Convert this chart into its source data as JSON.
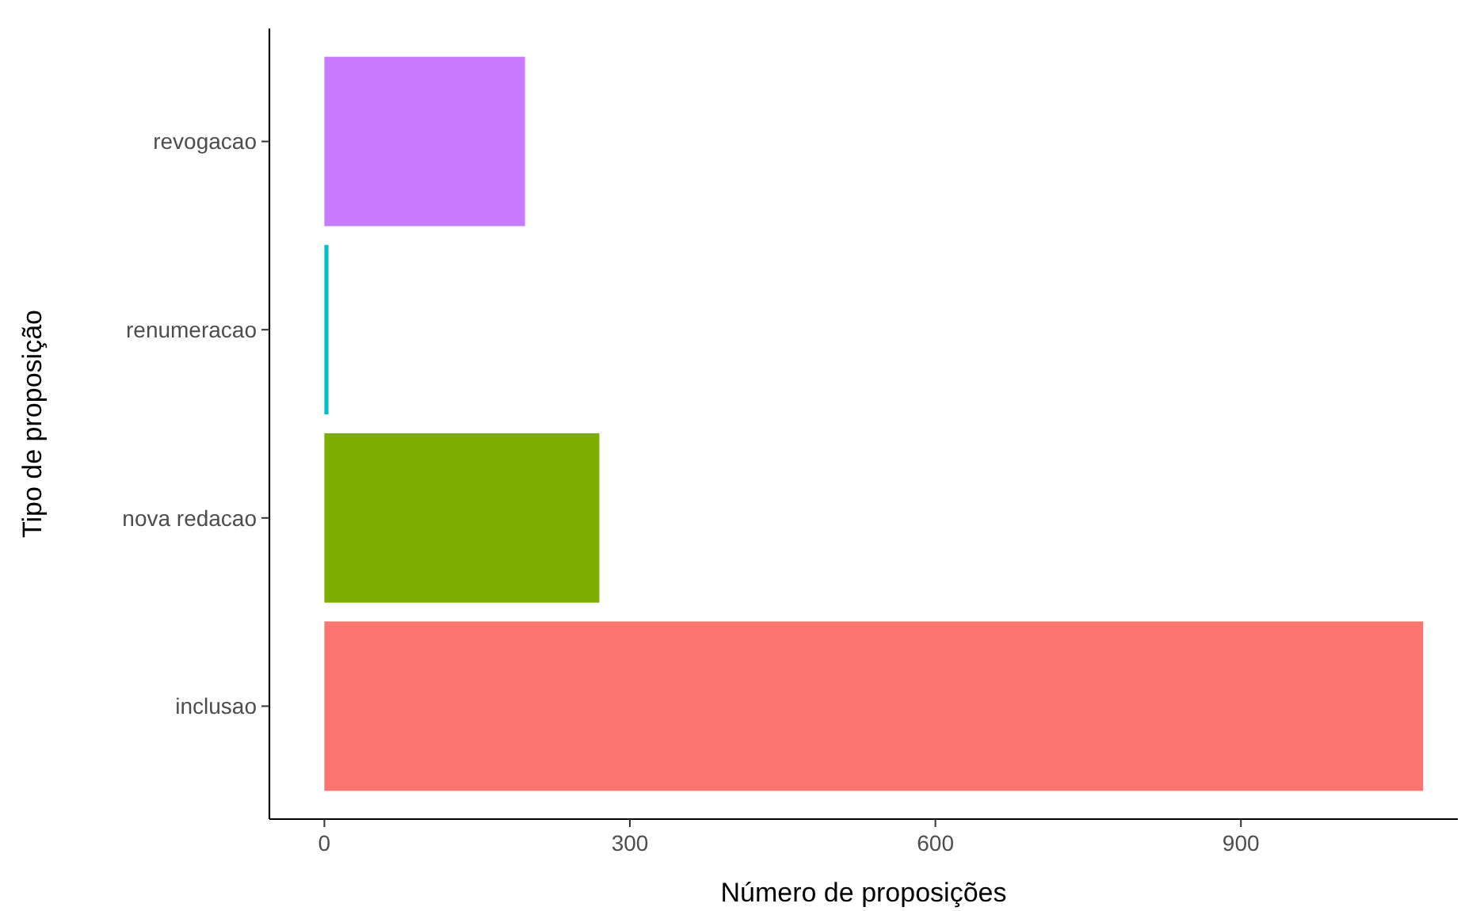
{
  "chart_data": {
    "type": "bar",
    "orientation": "horizontal",
    "xlabel": "Número de proposições",
    "ylabel": "Tipo de proposição",
    "categories": [
      "revogacao",
      "renumeracao",
      "nova redacao",
      "inclusao"
    ],
    "values": [
      197,
      4,
      270,
      1079
    ],
    "colors": [
      "#c77cff",
      "#00bfc4",
      "#7cae00",
      "#f8766d"
    ],
    "xlim": [
      -54,
      1113
    ],
    "xticks": [
      0,
      300,
      600,
      900
    ]
  }
}
